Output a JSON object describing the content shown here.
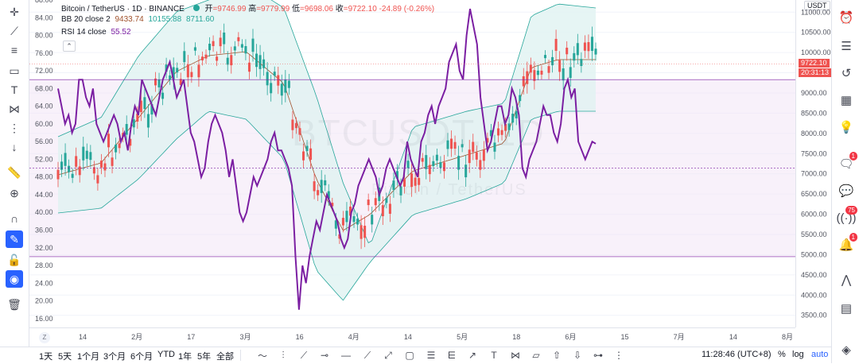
{
  "header": {
    "symbol": "Bitcoin / TetherUS · 1D · BINANCE",
    "ohlc": {
      "open_label": "开",
      "open": "=9746.99",
      "high_label": "高",
      "high": "=9779.99",
      "low_label": "低",
      "low": "=9698.06",
      "close_label": "收",
      "close": "=9722.10",
      "change": "-24.89 (-0.26%)"
    },
    "bb": {
      "label": "BB 20 close 2",
      "v1": "9433.74",
      "v2": "10155.88",
      "v3": "8711.60"
    },
    "rsi": {
      "label": "RSI 14 close",
      "value": "55.52"
    }
  },
  "watermark": {
    "line1": "BTCUSDT, 1D",
    "line2": "Bitcoin / TetherUS"
  },
  "price_scale": {
    "currency": "USDT",
    "labels": [
      "11000.00",
      "10500.00",
      "10000.00",
      "9500.00",
      "9000.00",
      "8500.00",
      "8000.00",
      "7500.00",
      "7000.00",
      "6500.00",
      "6000.00",
      "5500.00",
      "5000.00",
      "4500.00",
      "4000.00",
      "3500.00"
    ],
    "last_price": "9722.10",
    "countdown": "20:31:13"
  },
  "rsi_scale": {
    "labels": [
      "88.00",
      "84.00",
      "80.00",
      "76.00",
      "72.00",
      "68.00",
      "64.00",
      "60.00",
      "56.00",
      "52.00",
      "48.00",
      "44.00",
      "40.00",
      "36.00",
      "32.00",
      "28.00",
      "24.00",
      "20.00",
      "16.00"
    ]
  },
  "time_axis": {
    "labels": [
      "14",
      "2月",
      "17",
      "3月",
      "16",
      "4月",
      "14",
      "5月",
      "18",
      "6月",
      "15",
      "7月",
      "14",
      "8月"
    ]
  },
  "bottom_toolbar": {
    "ranges": [
      "1天",
      "5天",
      "1个月",
      "3个月",
      "6个月",
      "YTD",
      "1年",
      "5年",
      "全部"
    ],
    "clock": "11:28:46 (UTC+8)",
    "percent": "%",
    "log": "log",
    "auto": "auto"
  },
  "right_panel": {
    "badges": {
      "ideas": "1",
      "streams": "75",
      "alerts": "1"
    }
  },
  "colors": {
    "up": "#26a69a",
    "down": "#ef5350",
    "rsi": "#7b1fa2",
    "rsi_band": "#f3e5f5",
    "bb_band": "#e0f2f1",
    "bb_line": "#26a69a",
    "basis": "#a0522d",
    "accent": "#2962ff"
  },
  "chart_data": {
    "type": "line",
    "title": "Bitcoin / TetherUS · 1D · BINANCE",
    "rsi_ylim": [
      14,
      88
    ],
    "rsi_bands": [
      30,
      70,
      50
    ],
    "price_ylim": [
      3200,
      11300
    ],
    "series": [
      {
        "name": "RSI 14 close",
        "values": [
          68,
          64,
          60,
          62,
          58,
          60,
          70,
          70,
          66,
          64,
          68,
          60,
          58,
          56,
          58,
          60,
          62,
          60,
          56,
          58,
          54,
          60,
          64,
          62,
          70,
          68,
          66,
          64,
          62,
          66,
          70,
          72,
          74,
          70,
          66,
          68,
          70,
          64,
          58,
          56,
          52,
          48,
          50,
          56,
          60,
          62,
          60,
          58,
          54,
          48,
          52,
          46,
          40,
          38,
          40,
          44,
          48,
          46,
          48,
          50,
          52,
          56,
          58,
          54,
          54,
          52,
          50,
          46,
          30,
          18,
          28,
          24,
          30,
          34,
          38,
          36,
          40,
          44,
          42,
          40,
          38,
          34,
          32,
          34,
          40,
          42,
          46,
          48,
          50,
          52,
          50,
          48,
          44,
          46,
          50,
          52,
          50,
          48,
          46,
          48,
          56,
          52,
          50,
          48,
          56,
          58,
          62,
          64,
          60,
          64,
          66,
          68,
          74,
          76,
          78,
          72,
          70,
          80,
          86,
          82,
          78,
          66,
          60,
          54,
          56,
          60,
          64,
          64,
          60,
          62,
          68,
          66,
          62,
          50,
          48,
          52,
          54,
          56,
          60,
          64,
          62,
          62,
          58,
          56,
          60,
          68,
          70,
          66,
          68,
          56,
          54,
          52,
          54,
          56,
          55.52
        ]
      },
      {
        "name": "BB 20 close 2",
        "values": [
          8711.6,
          9433.74,
          10155.88
        ]
      }
    ],
    "xlabel": "",
    "ylabel": ""
  }
}
